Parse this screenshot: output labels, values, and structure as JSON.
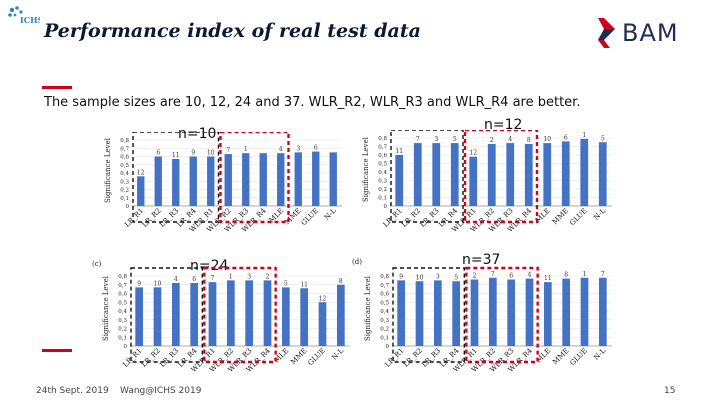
{
  "header": {
    "logo_text": "ICHS",
    "title": "Performance index of real test data",
    "brand": "BAM"
  },
  "subtitle": "The sample sizes are 10, 12, 24 and 37. WLR_R2, WLR_R3 and WLR_R4 are better.",
  "n_labels": [
    "n=10",
    "n=12",
    "n=24",
    "n=37"
  ],
  "footer": {
    "date": "24th Sept. 2019",
    "author": "Wang@ICHS 2019",
    "page": "15"
  },
  "chart_data": [
    {
      "type": "bar",
      "panel_tag": "",
      "ylabel": "Significance Level",
      "ylim": [
        0,
        0.8
      ],
      "yticks": [
        "0",
        "0,1",
        "0,2",
        "0,3",
        "0,4",
        "0,5",
        "0,6",
        "0,7",
        "0,8"
      ],
      "categories": [
        "LR_R1",
        "LR_R2",
        "LR_R3",
        "LR_R4",
        "WLR_R1",
        "WLR_R2",
        "WLR_R3",
        "WLR_R4",
        "MLE",
        "MME",
        "GLUE",
        "N-L"
      ],
      "values": [
        0.36,
        0.6,
        0.57,
        0.6,
        0.6,
        0.63,
        0.64,
        0.64,
        0.64,
        0.65,
        0.66,
        0.65
      ],
      "bar_labels": [
        "12",
        "6",
        "11",
        "9",
        "10",
        "7",
        "1",
        "",
        "4",
        "3",
        "6",
        ""
      ]
    },
    {
      "type": "bar",
      "panel_tag": "",
      "ylabel": "Significance Level",
      "ylim": [
        0,
        0.8
      ],
      "yticks": [
        "0",
        "0,1",
        "0,2",
        "0,3",
        "0,4",
        "0,5",
        "0,6",
        "0,7",
        "0,8"
      ],
      "categories": [
        "LR_R1",
        "LR_R2",
        "LR_R3",
        "LR_R4",
        "WLR_R1",
        "WLR_R2",
        "WLR_R3",
        "WLR_R4",
        "MLE",
        "MME",
        "GLUE",
        "N-L"
      ],
      "values": [
        0.6,
        0.74,
        0.74,
        0.74,
        0.58,
        0.73,
        0.74,
        0.73,
        0.74,
        0.76,
        0.79,
        0.75
      ],
      "bar_labels": [
        "11",
        "7",
        "3",
        "5",
        "12",
        "2",
        "4",
        "8",
        "10",
        "6",
        "1",
        "5"
      ]
    },
    {
      "type": "bar",
      "panel_tag": "(c)",
      "ylabel": "Significance Level",
      "ylim": [
        0,
        0.8
      ],
      "yticks": [
        "0",
        "0,1",
        "0,2",
        "0,3",
        "0,4",
        "0,5",
        "0,6",
        "0,7",
        "0,8"
      ],
      "categories": [
        "LR_R1",
        "LR_R2",
        "LR_R3",
        "LR_R4",
        "WLR_R1",
        "WLR_R2",
        "WLR_R3",
        "WLR_R4",
        "MLE",
        "MME",
        "GLUE",
        "N-L"
      ],
      "values": [
        0.67,
        0.67,
        0.72,
        0.72,
        0.73,
        0.75,
        0.75,
        0.75,
        0.67,
        0.66,
        0.5,
        0.7
      ],
      "bar_labels": [
        "9",
        "10",
        "4",
        "6",
        "7",
        "1",
        "3",
        "2",
        "5",
        "11",
        "12",
        "8"
      ]
    },
    {
      "type": "bar",
      "panel_tag": "(d)",
      "ylabel": "Significance Level",
      "ylim": [
        0,
        0.8
      ],
      "yticks": [
        "0",
        "0,1",
        "0,2",
        "0,3",
        "0,4",
        "0,5",
        "0,6",
        "0,7",
        "0,8"
      ],
      "categories": [
        "LR_R1",
        "LR_R2",
        "LR_R3",
        "LR_R4",
        "WLR_R1",
        "WLR_R2",
        "WLR_R3",
        "WLR_R4",
        "MLE",
        "MME",
        "GLUE",
        "N-L"
      ],
      "values": [
        0.75,
        0.74,
        0.75,
        0.74,
        0.76,
        0.78,
        0.76,
        0.77,
        0.73,
        0.77,
        0.78,
        0.78
      ],
      "bar_labels": [
        "9",
        "10",
        "3",
        "5",
        "2",
        "7",
        "6",
        "4",
        "11",
        "8",
        "1",
        "7"
      ]
    }
  ],
  "colors": {
    "bar": "#4472c4",
    "highlight_red": "#d0021b",
    "dashed_black": "#111111",
    "title": "#0b1a33"
  }
}
